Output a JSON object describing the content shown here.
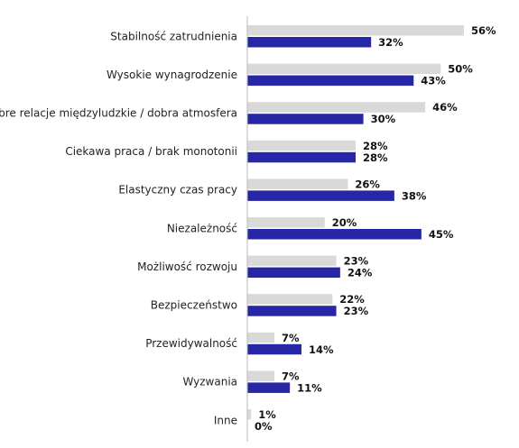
{
  "chart_data": {
    "type": "bar",
    "orientation": "horizontal",
    "categories": [
      "Stabilność zatrudnienia",
      "Wysokie wynagrodzenie",
      "Dobre relacje międzyludzkie / dobra atmosfera",
      "Ciekawa praca / brak monotonii",
      "Elastyczny czas pracy",
      "Niezależność",
      "Możliwość rozwoju",
      "Bezpieczeństwo",
      "Przewidywalność",
      "Wyzwania",
      "Inne"
    ],
    "series": [
      {
        "values": [
          56,
          50,
          46,
          28,
          26,
          20,
          23,
          22,
          7,
          7,
          1
        ],
        "color": "#d9d9d9"
      },
      {
        "values": [
          32,
          43,
          30,
          28,
          38,
          45,
          24,
          23,
          14,
          11,
          0
        ],
        "color": "#2626a6"
      }
    ],
    "value_format": "{v}%",
    "xlim": [
      0,
      56
    ],
    "grid": false,
    "legend": "none",
    "axis_color": "#bbbbbb"
  }
}
